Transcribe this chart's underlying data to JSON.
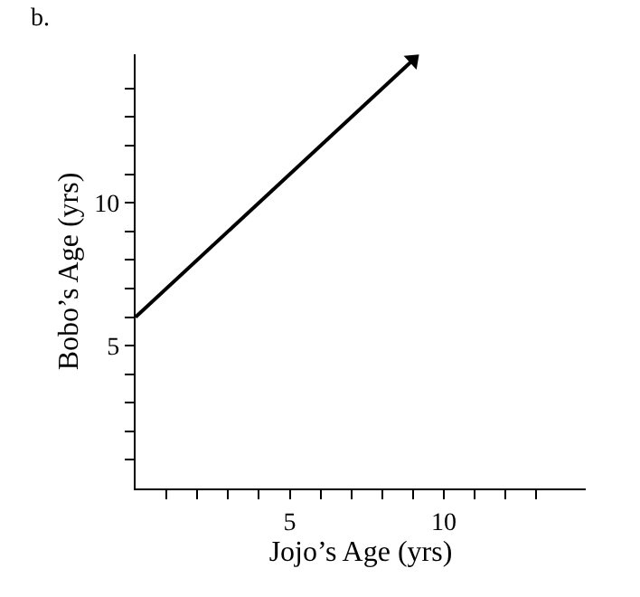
{
  "chart_data": {
    "type": "line",
    "xlabel": "Jojo’s Age (yrs)",
    "ylabel": "Bobo’s Age (yrs)",
    "annotations": [
      "b."
    ],
    "x": [
      0,
      9
    ],
    "series": [
      {
        "color": "#000000",
        "values": [
          6,
          15
        ]
      }
    ],
    "xlim": [
      0,
      14.6
    ],
    "ylim": [
      0,
      15.2
    ],
    "xticks": [
      {
        "value": 1,
        "label": null
      },
      {
        "value": 2,
        "label": null
      },
      {
        "value": 3,
        "label": null
      },
      {
        "value": 4,
        "label": null
      },
      5,
      {
        "value": 6,
        "label": null
      },
      {
        "value": 7,
        "label": null
      },
      {
        "value": 8,
        "label": null
      },
      {
        "value": 9,
        "label": null
      },
      10,
      {
        "value": 11,
        "label": null
      },
      {
        "value": 12,
        "label": null
      },
      {
        "value": 13,
        "label": null
      }
    ],
    "yticks": [
      {
        "value": 1,
        "label": null
      },
      {
        "value": 2,
        "label": null
      },
      {
        "value": 3,
        "label": null
      },
      {
        "value": 4,
        "label": null
      },
      5,
      {
        "value": 6,
        "label": null
      },
      {
        "value": 7,
        "label": null
      },
      {
        "value": 8,
        "label": null
      },
      {
        "value": 9,
        "label": null
      },
      10,
      {
        "value": 11,
        "label": null
      },
      {
        "value": 12,
        "label": null
      },
      {
        "value": 13,
        "label": null
      },
      {
        "value": 14,
        "label": null
      }
    ],
    "line_style": "solid"
  }
}
